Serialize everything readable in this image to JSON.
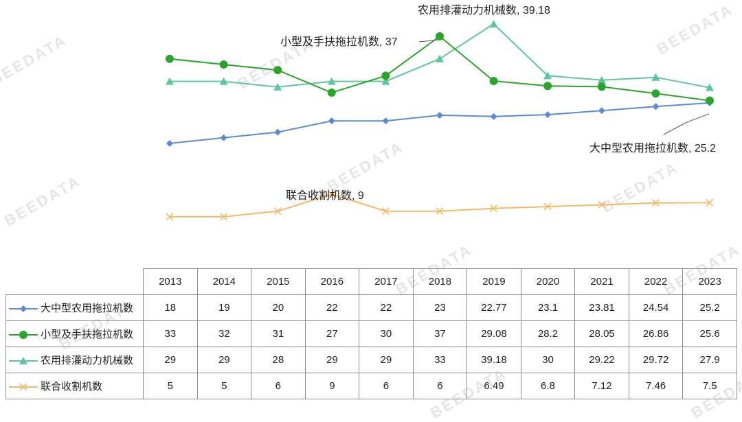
{
  "chart_data": {
    "type": "line",
    "categories": [
      "2013",
      "2014",
      "2015",
      "2016",
      "2017",
      "2018",
      "2019",
      "2020",
      "2021",
      "2022",
      "2023"
    ],
    "series": [
      {
        "name": "大中型农用拖拉机数",
        "color": "#5b8ad6",
        "marker": "diamond",
        "values": [
          18,
          19,
          20,
          22,
          22,
          23,
          22.77,
          23.1,
          23.81,
          24.54,
          25.2
        ],
        "display": [
          "18",
          "19",
          "20",
          "22",
          "22",
          "23",
          "22.77",
          "23.1",
          "23.81",
          "24.54",
          "25.2"
        ]
      },
      {
        "name": "小型及手扶拖拉机数",
        "color": "#2aa52a",
        "marker": "circle",
        "values": [
          33,
          32,
          31,
          27,
          30,
          37,
          29.08,
          28.2,
          28.05,
          26.86,
          25.6
        ],
        "display": [
          "33",
          "32",
          "31",
          "27",
          "30",
          "37",
          "29.08",
          "28.2",
          "28.05",
          "26.86",
          "25.6"
        ]
      },
      {
        "name": "农用排灌动力机械数",
        "color": "#5cc79a",
        "marker": "triangle",
        "values": [
          29,
          29,
          28,
          29,
          29,
          33,
          39.18,
          30,
          29.22,
          29.72,
          27.9
        ],
        "display": [
          "29",
          "29",
          "28",
          "29",
          "29",
          "33",
          "39.18",
          "30",
          "29.22",
          "29.72",
          "27.9"
        ]
      },
      {
        "name": "联合收割机数",
        "color": "#f5b965",
        "marker": "x",
        "values": [
          5,
          5,
          6,
          9,
          6,
          6,
          6.49,
          6.8,
          7.12,
          7.46,
          7.5
        ],
        "display": [
          "5",
          "5",
          "6",
          "9",
          "6",
          "6",
          "6.49",
          "6.8",
          "7.12",
          "7.46",
          "7.5"
        ]
      }
    ],
    "annotations": [
      {
        "text": "农用排灌动力机械数, 39.18"
      },
      {
        "text": "小型及手扶拖拉机数, 37"
      },
      {
        "text": "大中型农用拖拉机数, 25.2"
      },
      {
        "text": "联合收割机数, 9"
      }
    ],
    "ylim": [
      0,
      42
    ],
    "grid": false,
    "legend": "data-table-below"
  },
  "watermark": "BEEDATA"
}
